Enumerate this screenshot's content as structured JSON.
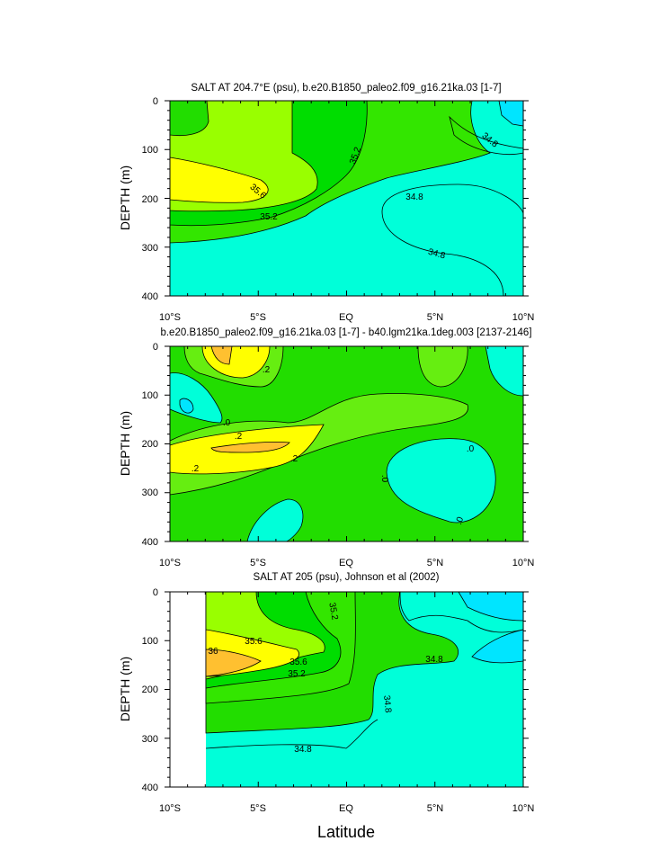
{
  "chart_data": [
    {
      "type": "contour",
      "title": "SALT AT 204.7°E (psu), b.e20.B1850_paleo2.f09_g16.21ka.03 [1-7]",
      "ylabel": "DEPTH (m)",
      "yticks": [
        "0",
        "100",
        "200",
        "300",
        "400"
      ],
      "xticks": [
        "10°S",
        "5°S",
        "EQ",
        "5°N",
        "10°N"
      ],
      "xlim": [
        -10,
        10
      ],
      "ylim": [
        400,
        0
      ],
      "contour_labels": [
        "35.6",
        "35.2",
        "35.2",
        "34.8",
        "34.8",
        "34.8"
      ]
    },
    {
      "type": "contour",
      "title": "b.e20.B1850_paleo2.f09_g16.21ka.03 [1-7] - b40.lgm21ka.1deg.003 [2137-2146]",
      "ylabel": "DEPTH (m)",
      "yticks": [
        "0",
        "100",
        "200",
        "300",
        "400"
      ],
      "xticks": [
        "10°S",
        "5°S",
        "EQ",
        "5°N",
        "10°N"
      ],
      "xlim": [
        -10,
        10
      ],
      "ylim": [
        400,
        0
      ],
      "contour_labels": [
        ".2",
        ".0",
        ".2",
        ".2",
        ".2",
        ".0",
        ".0",
        ".0"
      ]
    },
    {
      "type": "contour",
      "title": "SALT AT 205 (psu), Johnson et al (2002)",
      "ylabel": "DEPTH (m)",
      "xlabel": "Latitude",
      "yticks": [
        "0",
        "100",
        "200",
        "300",
        "400"
      ],
      "xticks": [
        "10°S",
        "5°S",
        "EQ",
        "5°N",
        "10°N"
      ],
      "xlim": [
        -10,
        10
      ],
      "ylim": [
        400,
        0
      ],
      "contour_labels": [
        "35.2",
        "35.6",
        "36",
        "35.6",
        "35.2",
        "34.8",
        "34.8",
        "34.8"
      ]
    }
  ],
  "colors": {
    "cyan": "#00ffd9",
    "lightcyan": "#00e5ff",
    "green": "#22dd00",
    "lightgreen": "#66ee11",
    "yellowgreen": "#99ff00",
    "yellow": "#ffff00",
    "orange": "#ffc030"
  }
}
